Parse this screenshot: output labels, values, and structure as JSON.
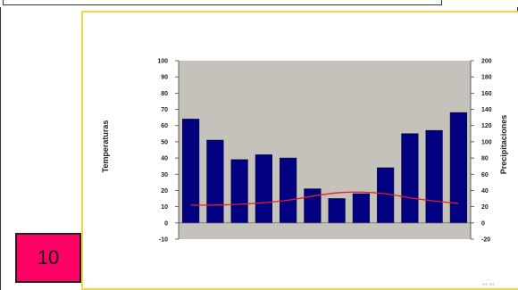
{
  "slide_number": "10",
  "colors": {
    "plot_background": "#c4c2bb",
    "bar_fill": "#000080",
    "line_color": "#e0202a",
    "badge_fill": "#ff0066",
    "frame_border": "#f2d64a"
  },
  "corner_mark": "°° °°",
  "chart_data": {
    "type": "bar",
    "categories": [
      "",
      "",
      "",
      "",
      "",
      "",
      "",
      "",
      "",
      "",
      "",
      ""
    ],
    "series": [
      {
        "type": "bar",
        "axis": "left",
        "values": [
          64,
          51,
          39,
          42,
          40,
          21,
          15,
          18,
          34,
          55,
          57,
          68
        ]
      },
      {
        "type": "line",
        "axis": "right",
        "values": [
          22,
          22,
          23,
          25,
          28,
          33,
          37,
          38,
          36,
          31,
          27,
          24
        ]
      }
    ],
    "ylabel": "Temperaturas",
    "y2label": "Precipitaciones",
    "ylim": [
      -10,
      100
    ],
    "y2lim": [
      -20,
      200
    ],
    "yticks": [
      "100",
      "90",
      "80",
      "70",
      "60",
      "50",
      "40",
      "30",
      "20",
      "10",
      "0",
      "-10"
    ],
    "y2ticks": [
      "200",
      "180",
      "160",
      "140",
      "120",
      "100",
      "80",
      "60",
      "40",
      "20",
      "0",
      "-20"
    ],
    "grid": false,
    "legend": "none"
  }
}
